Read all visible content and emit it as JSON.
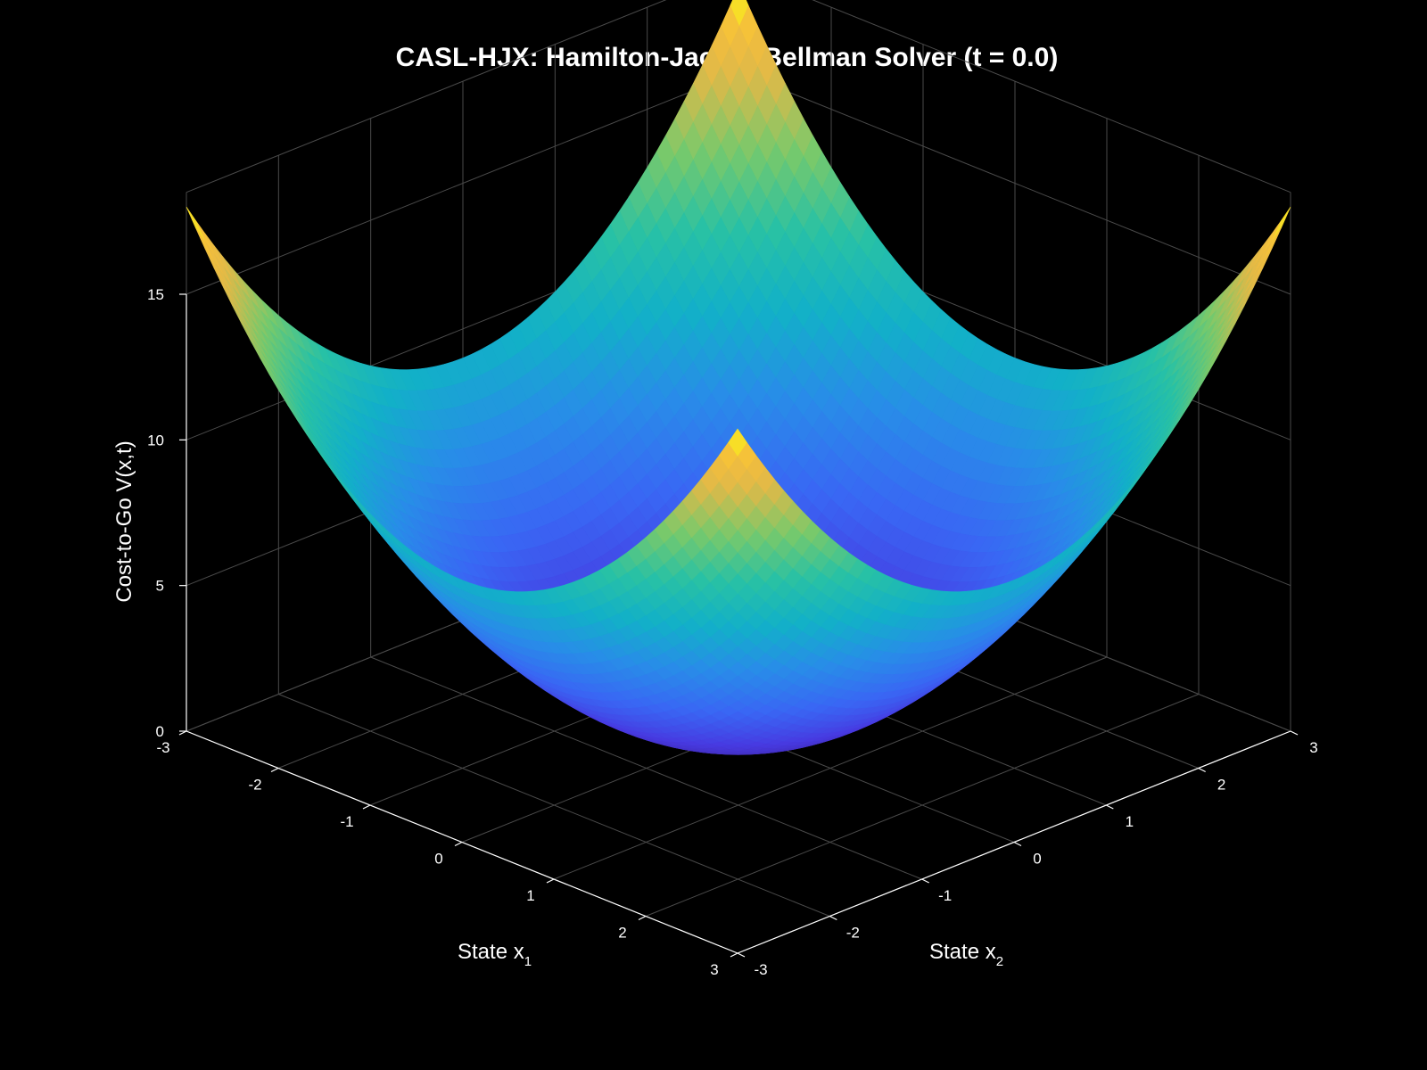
{
  "chart_data": {
    "type": "surface3d",
    "title": "CASL-HJX: Hamilton-Jacobi-Bellman Solver (t = 0.0)",
    "xlabel": {
      "main": "State x",
      "sub": "1"
    },
    "ylabel": {
      "main": "State x",
      "sub": "2"
    },
    "zlabel": "Cost-to-Go V(x,t)",
    "x_ticks": [
      "-3",
      "-2",
      "-1",
      "0",
      "1",
      "2",
      "3"
    ],
    "y_ticks": [
      "-3",
      "-2",
      "-1",
      "0",
      "1",
      "2",
      "3"
    ],
    "z_ticks": [
      "0",
      "5",
      "10",
      "15"
    ],
    "xlim": [
      -3,
      3
    ],
    "ylim": [
      -3,
      3
    ],
    "zlim": [
      0,
      15
    ],
    "grid": true,
    "colormap": "parula",
    "surface": {
      "function": "V = x1^2 + x2^2",
      "x1_range": [
        -3,
        3
      ],
      "x2_range": [
        -3,
        3
      ],
      "value_range": [
        0,
        18
      ]
    },
    "background": "#000000",
    "grid_color": "#4a4a4a",
    "axis_color": "#ffffff"
  }
}
